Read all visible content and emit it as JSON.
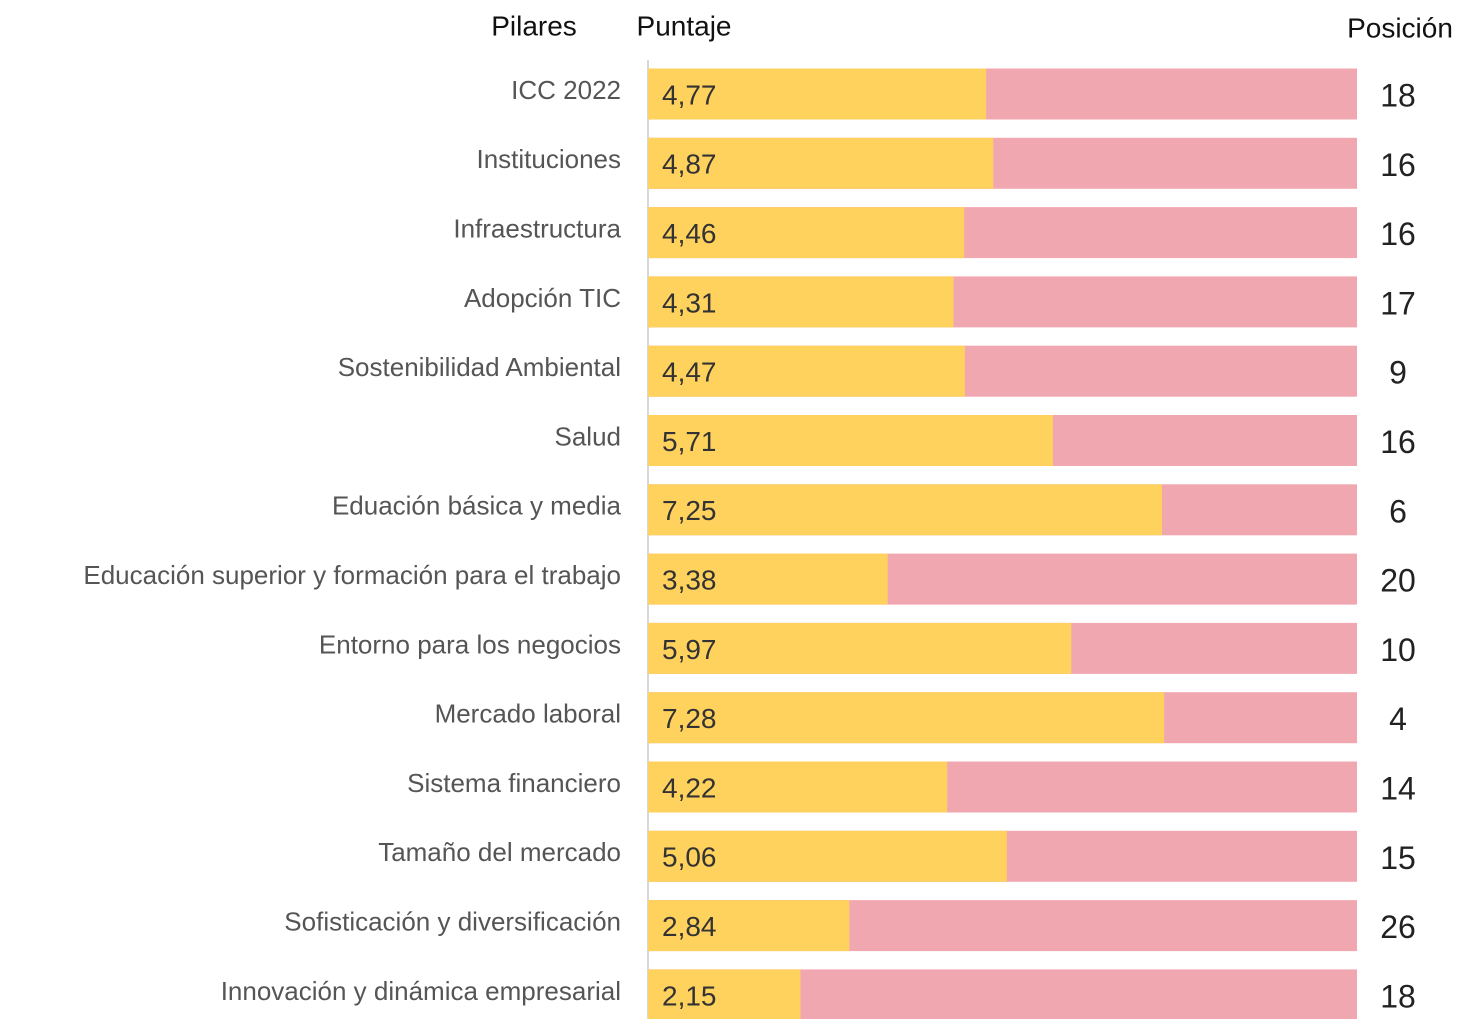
{
  "chart_data": {
    "type": "bar",
    "orientation": "horizontal",
    "category_header": "Pilares",
    "value_header": "Puntaje",
    "rank_header": "Posición",
    "categories": [
      "ICC 2022",
      "Instituciones",
      "Infraestructura",
      "Adopción TIC",
      "Sostenibilidad Ambiental",
      "Salud",
      "Eduación básica y media",
      "Educación superior y formación para el trabajo",
      "Entorno para los negocios",
      "Mercado laboral",
      "Sistema financiero",
      "Tamaño del mercado",
      "Sofisticación y diversificación",
      "Innovación y dinámica empresarial"
    ],
    "values": [
      4.77,
      4.87,
      4.46,
      4.31,
      4.47,
      5.71,
      7.25,
      3.38,
      5.97,
      7.28,
      4.22,
      5.06,
      2.84,
      2.15
    ],
    "value_labels": [
      "4,77",
      "4,87",
      "4,46",
      "4,31",
      "4,47",
      "5,71",
      "7,25",
      "3,38",
      "5,97",
      "7,28",
      "4,22",
      "5,06",
      "2,84",
      "2,15"
    ],
    "ranks": [
      18,
      16,
      16,
      17,
      9,
      16,
      6,
      20,
      10,
      4,
      14,
      15,
      26,
      18
    ],
    "color": "#ffd25e",
    "track_color": "#f0a7b0",
    "xlim": [
      0,
      10
    ]
  }
}
